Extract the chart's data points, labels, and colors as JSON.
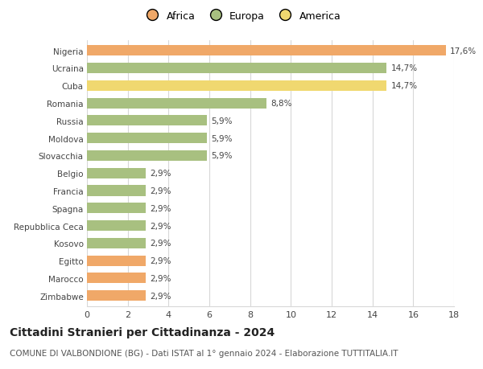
{
  "countries": [
    "Nigeria",
    "Ucraina",
    "Cuba",
    "Romania",
    "Russia",
    "Moldova",
    "Slovacchia",
    "Belgio",
    "Francia",
    "Spagna",
    "Repubblica Ceca",
    "Kosovo",
    "Egitto",
    "Marocco",
    "Zimbabwe"
  ],
  "values": [
    17.6,
    14.7,
    14.7,
    8.8,
    5.9,
    5.9,
    5.9,
    2.9,
    2.9,
    2.9,
    2.9,
    2.9,
    2.9,
    2.9,
    2.9
  ],
  "continents": [
    "Africa",
    "Europa",
    "America",
    "Europa",
    "Europa",
    "Europa",
    "Europa",
    "Europa",
    "Europa",
    "Europa",
    "Europa",
    "Europa",
    "Africa",
    "Africa",
    "Africa"
  ],
  "colors": {
    "Africa": "#F0A868",
    "Europa": "#A8C080",
    "America": "#F0D870"
  },
  "xlim": [
    0,
    18
  ],
  "xticks": [
    0,
    2,
    4,
    6,
    8,
    10,
    12,
    14,
    16,
    18
  ],
  "title": "Cittadini Stranieri per Cittadinanza - 2024",
  "subtitle": "COMUNE DI VALBONDIONE (BG) - Dati ISTAT al 1° gennaio 2024 - Elaborazione TUTTITALIA.IT",
  "bar_height": 0.6,
  "background_color": "#ffffff",
  "grid_color": "#d8d8d8",
  "label_fontsize": 7.5,
  "ytick_fontsize": 7.5,
  "xtick_fontsize": 8,
  "title_fontsize": 10,
  "subtitle_fontsize": 7.5,
  "legend_fontsize": 9
}
